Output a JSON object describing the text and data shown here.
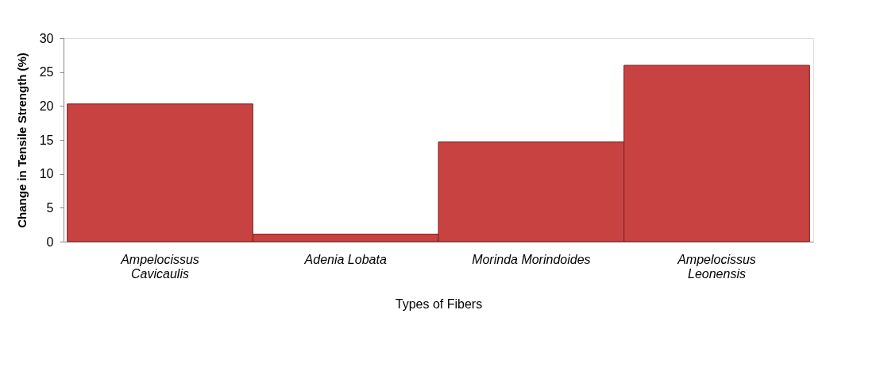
{
  "chart_data": {
    "type": "bar",
    "xlabel": "Types of Fibers",
    "ylabel": "Change in Tensile Strength (%)",
    "categories": [
      "Ampelocissus\nCavicaulis",
      "Adenia Lobata",
      "Morinda Morindoides",
      "Ampelocissus\nLeonensis"
    ],
    "values": [
      20.3,
      1.1,
      14.7,
      26.0
    ],
    "color": "#c94242",
    "ylim": [
      0,
      30
    ],
    "yticks": [
      0,
      5,
      10,
      15,
      20,
      25,
      30
    ],
    "grid": false
  }
}
